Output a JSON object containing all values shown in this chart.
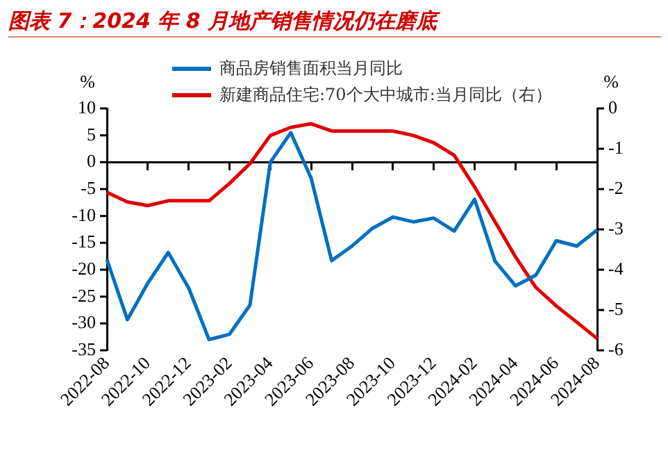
{
  "chart_data": {
    "type": "line",
    "title": "图表 7：2024 年 8 月地产销售情况仍在磨底",
    "ylabel": "%",
    "y2label": "%",
    "categories": [
      "2022-08",
      null,
      "2022-10",
      null,
      "2022-12",
      null,
      "2023-02",
      null,
      "2023-04",
      null,
      "2023-06",
      null,
      "2023-08",
      null,
      "2023-10",
      null,
      "2023-12",
      null,
      "2024-02",
      null,
      "2024-04",
      null,
      "2024-06",
      null,
      "2024-08"
    ],
    "series": [
      {
        "name": "商品房销售面积当月同比",
        "color": "#0070c0",
        "values": [
          -18.1,
          -29.3,
          -22.5,
          -16.8,
          -23.4,
          -33,
          -32,
          -26.6,
          0,
          5.5,
          -3,
          -18.3,
          -15.6,
          -12.3,
          -10.2,
          -11.1,
          -10.4,
          -12.8,
          -6.9,
          -18.4,
          -23,
          -21,
          -14.6,
          -15.6,
          -12.6
        ]
      },
      {
        "name": "新建商品住宅:70个大中城市:当月同比（右）",
        "color": "#e00000",
        "axis": "y2",
        "values": [
          -2.08,
          -2.32,
          -2.41,
          -2.29,
          -2.29,
          -2.29,
          -1.86,
          -1.37,
          -0.67,
          -0.47,
          -0.38,
          -0.56,
          -0.56,
          -0.56,
          -0.56,
          -0.67,
          -0.85,
          -1.16,
          -1.95,
          -2.81,
          -3.68,
          -4.44,
          -4.9,
          -5.3,
          -5.71
        ]
      }
    ],
    "ylim": [
      -35,
      10
    ],
    "yticks": [
      -35,
      -30,
      -25,
      -20,
      -15,
      -10,
      -5,
      0,
      5,
      10
    ],
    "y2lim": [
      -6,
      0
    ],
    "y2ticks": [
      -6,
      -5,
      -4,
      -3,
      -2,
      -1,
      0
    ],
    "legend": "top"
  }
}
